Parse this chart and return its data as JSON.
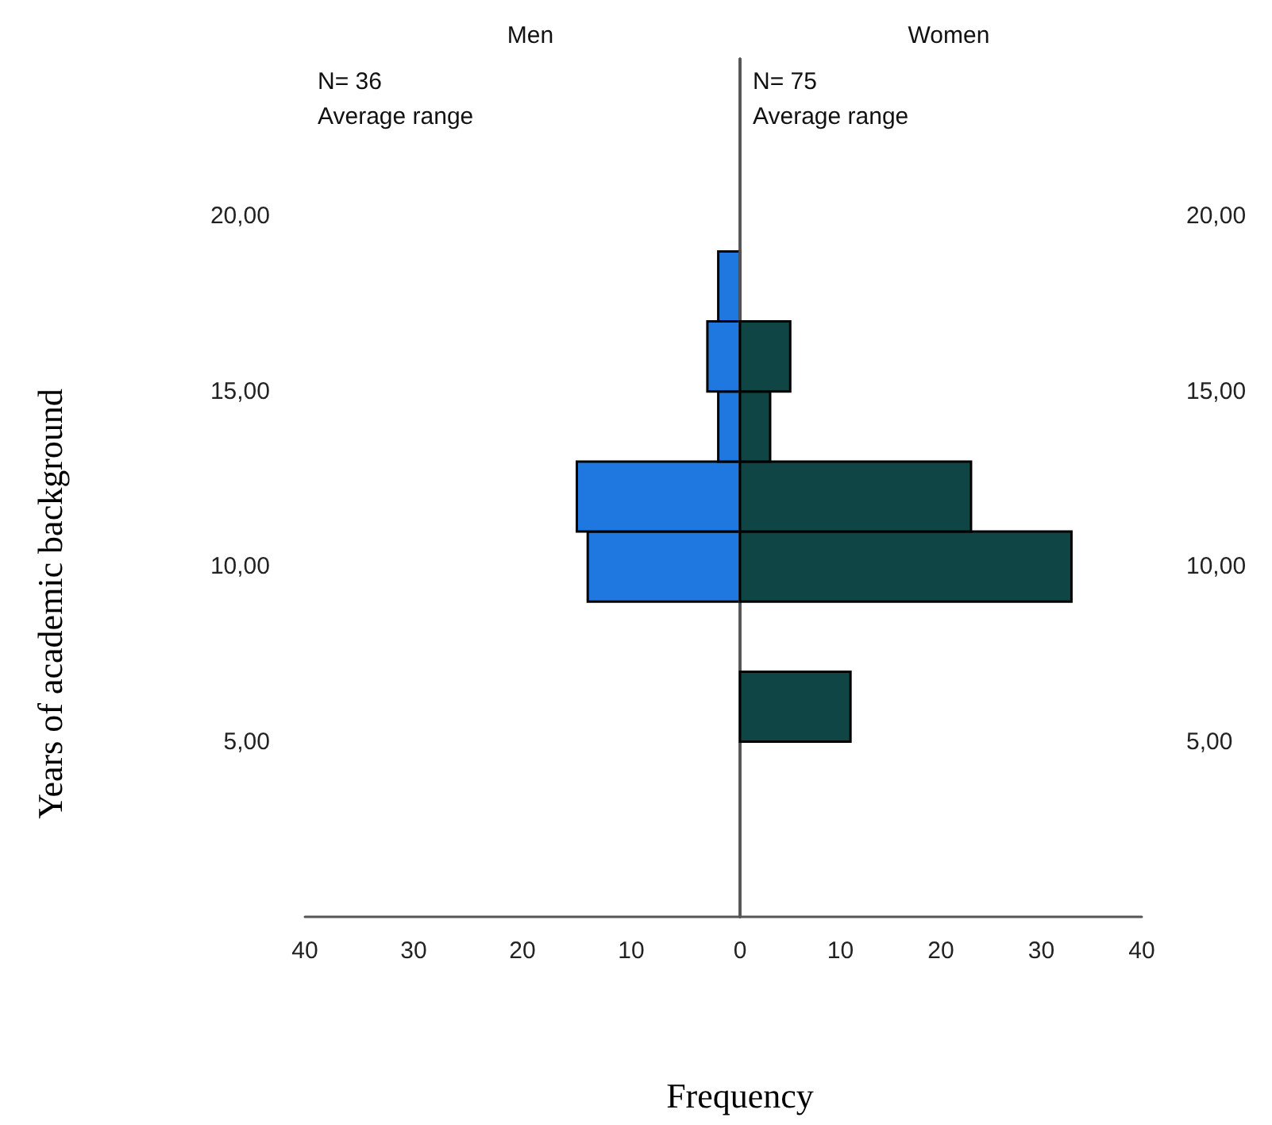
{
  "chart_data": [
    {
      "type": "histogram",
      "title": "Men",
      "orientation": "horizontal",
      "ylabel": "Years of academic background",
      "xlabel": "Frequency",
      "annotations": [
        "N= 36",
        "Average range"
      ],
      "bins": [
        5,
        7,
        9,
        11,
        13,
        15,
        17,
        19
      ],
      "series": [
        {
          "color": "#1e78e0",
          "values": [
            0,
            0,
            14,
            15,
            2,
            3,
            2
          ]
        }
      ],
      "xlim": [
        40,
        0
      ],
      "xticks": [
        40,
        30,
        20,
        10
      ],
      "ylim": [
        0,
        24.5
      ],
      "yticks": [
        {
          "value": 5,
          "label": "5,00"
        },
        {
          "value": 10,
          "label": "10,00"
        },
        {
          "value": 15,
          "label": "15,00"
        },
        {
          "value": 20,
          "label": "20,00"
        }
      ]
    },
    {
      "type": "histogram",
      "title": "Women",
      "orientation": "horizontal",
      "annotations": [
        "N= 75",
        "Average range"
      ],
      "bins": [
        5,
        7,
        9,
        11,
        13,
        15,
        17,
        19
      ],
      "series": [
        {
          "color": "#0f4545",
          "values": [
            11,
            0,
            33,
            23,
            3,
            5,
            0
          ]
        }
      ],
      "xlim": [
        0,
        40
      ],
      "xticks": [
        0,
        10,
        20,
        30,
        40
      ],
      "ylim": [
        0,
        24.5
      ],
      "yticks": [
        {
          "value": 5,
          "label": "5,00"
        },
        {
          "value": 10,
          "label": "10,00"
        },
        {
          "value": 15,
          "label": "15,00"
        },
        {
          "value": 20,
          "label": "20,00"
        }
      ]
    }
  ]
}
